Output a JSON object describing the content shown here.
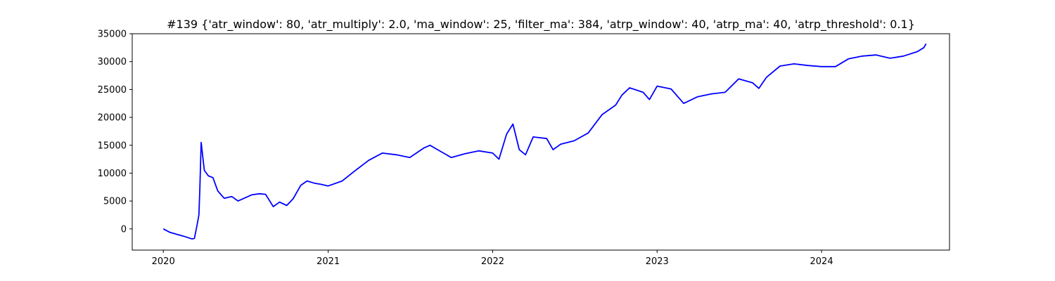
{
  "chart_data": {
    "type": "line",
    "title": "#139 {'atr_window': 80, 'atr_multiply': 2.0, 'ma_window': 25, 'filter_ma': 384, 'atrp_window': 40, 'atrp_ma': 40, 'atrp_threshold': 0.1}",
    "xlabel": "",
    "ylabel": "",
    "x_ticks": [
      "2020",
      "2021",
      "2022",
      "2023",
      "2024"
    ],
    "y_ticks": [
      0,
      5000,
      10000,
      15000,
      20000,
      25000,
      30000,
      35000
    ],
    "xlim": [
      "2019-10-24",
      "2024-10-11"
    ],
    "ylim": [
      -3800,
      35000
    ],
    "grid": false,
    "legend": "none",
    "series": [
      {
        "color": "#0000ff",
        "x": [
          "2020-01-01",
          "2020-01-15",
          "2020-02-01",
          "2020-02-15",
          "2020-03-01",
          "2020-03-05",
          "2020-03-10",
          "2020-03-15",
          "2020-03-20",
          "2020-03-22",
          "2020-03-25",
          "2020-04-01",
          "2020-04-10",
          "2020-04-20",
          "2020-05-01",
          "2020-05-15",
          "2020-06-01",
          "2020-06-15",
          "2020-07-01",
          "2020-07-15",
          "2020-08-01",
          "2020-08-15",
          "2020-09-01",
          "2020-09-15",
          "2020-10-01",
          "2020-10-15",
          "2020-11-01",
          "2020-11-15",
          "2020-12-01",
          "2020-12-15",
          "2021-01-01",
          "2021-02-01",
          "2021-03-01",
          "2021-04-01",
          "2021-05-01",
          "2021-06-01",
          "2021-07-01",
          "2021-08-01",
          "2021-08-15",
          "2021-09-01",
          "2021-10-01",
          "2021-11-01",
          "2021-12-01",
          "2022-01-01",
          "2022-01-15",
          "2022-02-01",
          "2022-02-15",
          "2022-03-01",
          "2022-03-15",
          "2022-04-01",
          "2022-05-01",
          "2022-05-15",
          "2022-06-01",
          "2022-07-01",
          "2022-08-01",
          "2022-09-01",
          "2022-10-01",
          "2022-10-15",
          "2022-11-01",
          "2022-12-01",
          "2022-12-15",
          "2023-01-01",
          "2023-02-01",
          "2023-03-01",
          "2023-04-01",
          "2023-05-01",
          "2023-06-01",
          "2023-07-01",
          "2023-08-01",
          "2023-08-15",
          "2023-09-01",
          "2023-10-01",
          "2023-11-01",
          "2023-12-01",
          "2024-01-01",
          "2024-02-01",
          "2024-03-01",
          "2024-04-01",
          "2024-05-01",
          "2024-06-01",
          "2024-07-01",
          "2024-08-01",
          "2024-08-15",
          "2024-08-20"
        ],
        "y": [
          0,
          -600,
          -1000,
          -1300,
          -1700,
          -1800,
          -1700,
          300,
          2500,
          7000,
          15500,
          10500,
          9500,
          9200,
          6800,
          5500,
          5800,
          5000,
          5600,
          6100,
          6300,
          6200,
          4000,
          4800,
          4200,
          5400,
          7800,
          8600,
          8200,
          8000,
          7700,
          8600,
          10400,
          12300,
          13600,
          13300,
          12800,
          14500,
          15000,
          14200,
          12800,
          13500,
          14000,
          13600,
          12500,
          17000,
          18800,
          14200,
          13300,
          16500,
          16200,
          14200,
          15200,
          15800,
          17200,
          20500,
          22200,
          24000,
          25300,
          24500,
          23200,
          25600,
          25100,
          22500,
          23700,
          24200,
          24500,
          26900,
          26200,
          25200,
          27200,
          29200,
          29600,
          29300,
          29100,
          29100,
          30500,
          31000,
          31200,
          30600,
          31000,
          31800,
          32500,
          33200
        ]
      }
    ]
  }
}
